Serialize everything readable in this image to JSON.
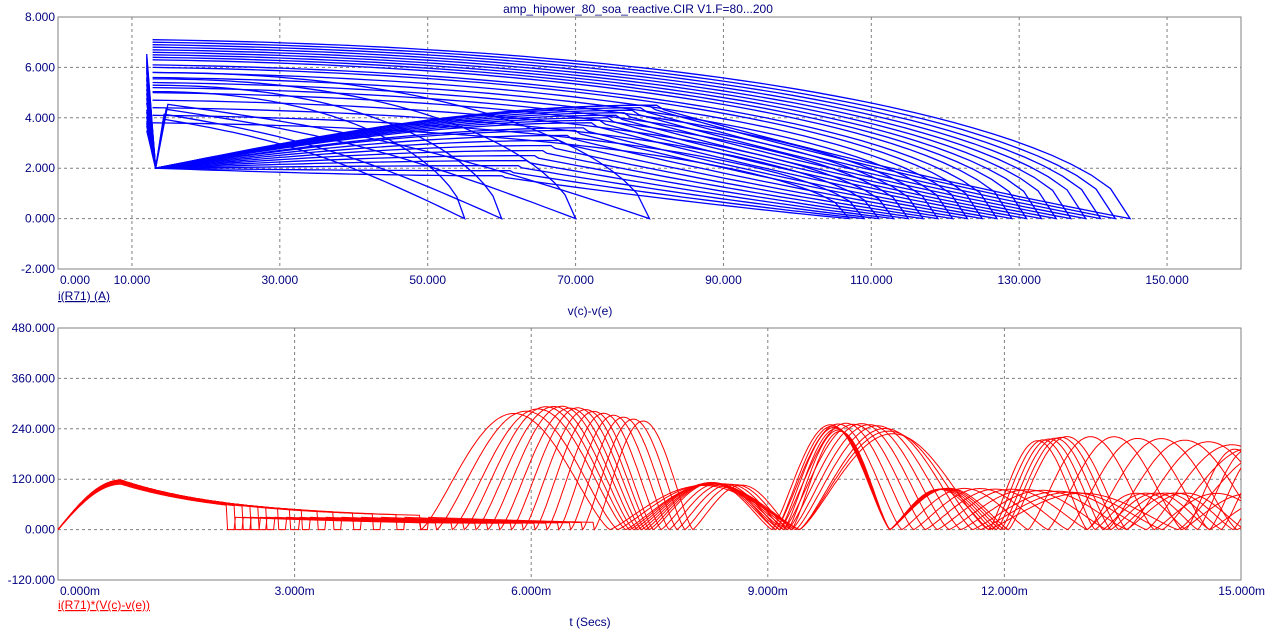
{
  "window": {
    "title": "amp_hipower_80_soa_reactive.CIR V1.F=80...200"
  },
  "colors": {
    "top_series": "#0000ff",
    "bottom_series": "#ff0000",
    "axis_text": "#000080",
    "grid": "#808080",
    "frame": "#808080"
  },
  "chart_data": [
    {
      "type": "line",
      "title": "amp_hipower_80_soa_reactive.CIR V1.F=80...200",
      "xlabel": "v(c)-v(e)",
      "ylabel": "i(R71) (A)",
      "xlim": [
        0,
        160
      ],
      "ylim": [
        -2,
        8
      ],
      "x_ticks": [
        "0.000",
        "10.000",
        "30.000",
        "50.000",
        "70.000",
        "90.000",
        "110.000",
        "130.000",
        "150.000"
      ],
      "y_ticks": [
        "8.000",
        "6.000",
        "4.000",
        "2.000",
        "0.000",
        "-2.000"
      ],
      "grid": true,
      "series_count": 24,
      "series": [
        {
          "shape": "loop",
          "vmin": 12,
          "vmax": 145,
          "ipeak": 7.1,
          "ilow": 2.0,
          "ireturn": 4.5
        },
        {
          "shape": "loop",
          "vmin": 12,
          "vmax": 143,
          "ipeak": 7.0,
          "ilow": 2.0,
          "ireturn": 4.5
        },
        {
          "shape": "loop",
          "vmin": 12,
          "vmax": 141,
          "ipeak": 6.9,
          "ilow": 2.0,
          "ireturn": 4.4
        },
        {
          "shape": "loop",
          "vmin": 12,
          "vmax": 139,
          "ipeak": 6.8,
          "ilow": 2.0,
          "ireturn": 4.3
        },
        {
          "shape": "loop",
          "vmin": 12,
          "vmax": 137,
          "ipeak": 6.7,
          "ilow": 2.0,
          "ireturn": 4.2
        },
        {
          "shape": "loop",
          "vmin": 12,
          "vmax": 135,
          "ipeak": 6.6,
          "ilow": 2.0,
          "ireturn": 4.1
        },
        {
          "shape": "loop",
          "vmin": 12,
          "vmax": 133,
          "ipeak": 6.5,
          "ilow": 2.0,
          "ireturn": 4.0
        },
        {
          "shape": "loop",
          "vmin": 12,
          "vmax": 131,
          "ipeak": 6.4,
          "ilow": 2.0,
          "ireturn": 3.9
        },
        {
          "shape": "loop",
          "vmin": 12,
          "vmax": 129,
          "ipeak": 6.3,
          "ilow": 2.0,
          "ireturn": 3.8
        },
        {
          "shape": "loop",
          "vmin": 12,
          "vmax": 127,
          "ipeak": 6.1,
          "ilow": 2.0,
          "ireturn": 3.6
        },
        {
          "shape": "loop",
          "vmin": 12,
          "vmax": 125,
          "ipeak": 6.0,
          "ilow": 2.0,
          "ireturn": 3.5
        },
        {
          "shape": "loop",
          "vmin": 12,
          "vmax": 123,
          "ipeak": 5.8,
          "ilow": 2.0,
          "ireturn": 3.3
        },
        {
          "shape": "loop",
          "vmin": 12,
          "vmax": 121,
          "ipeak": 5.6,
          "ilow": 2.0,
          "ireturn": 3.1
        },
        {
          "shape": "loop",
          "vmin": 12,
          "vmax": 119,
          "ipeak": 5.4,
          "ilow": 2.0,
          "ireturn": 2.9
        },
        {
          "shape": "loop",
          "vmin": 12,
          "vmax": 117,
          "ipeak": 5.2,
          "ilow": 2.0,
          "ireturn": 2.7
        },
        {
          "shape": "loop",
          "vmin": 12,
          "vmax": 115,
          "ipeak": 5.0,
          "ilow": 2.0,
          "ireturn": 2.5
        },
        {
          "shape": "loop",
          "vmin": 12,
          "vmax": 113,
          "ipeak": 4.7,
          "ilow": 2.0,
          "ireturn": 2.3
        },
        {
          "shape": "loop",
          "vmin": 12,
          "vmax": 111,
          "ipeak": 4.4,
          "ilow": 2.0,
          "ireturn": 2.1
        },
        {
          "shape": "loop",
          "vmin": 12,
          "vmax": 109,
          "ipeak": 4.1,
          "ilow": 2.0,
          "ireturn": 1.9
        },
        {
          "shape": "loop",
          "vmin": 12,
          "vmax": 107,
          "ipeak": 3.8,
          "ilow": 2.0,
          "ireturn": 1.7
        },
        {
          "shape": "tail",
          "vmin": 12,
          "vmax": 80,
          "ipeak": 4.6,
          "ilow": 2.0,
          "ireturn": 0.0
        },
        {
          "shape": "tail",
          "vmin": 12,
          "vmax": 70,
          "ipeak": 4.4,
          "ilow": 2.0,
          "ireturn": 0.0
        },
        {
          "shape": "tail",
          "vmin": 12,
          "vmax": 60,
          "ipeak": 4.2,
          "ilow": 2.0,
          "ireturn": 0.0
        },
        {
          "shape": "tail",
          "vmin": 12,
          "vmax": 55,
          "ipeak": 4.0,
          "ilow": 2.0,
          "ireturn": 0.0
        }
      ]
    },
    {
      "type": "line",
      "title": "",
      "xlabel": "t (Secs)",
      "ylabel": "i(R71)*(V(c)-v(e))",
      "xlim": [
        0,
        15
      ],
      "x_unit": "ms",
      "ylim": [
        -120,
        480
      ],
      "x_ticks": [
        "0.000m",
        "3.000m",
        "6.000m",
        "9.000m",
        "12.000m",
        "15.000m"
      ],
      "y_ticks": [
        "480.000",
        "360.000",
        "240.000",
        "120.000",
        "0.000",
        "-120.000"
      ],
      "grid": true,
      "series": [
        {
          "startup_peak": 108,
          "startup_end": 2.15,
          "lobe_start": 4.6,
          "lobe_period": 2.4,
          "lobe_peak": 290
        },
        {
          "startup_peak": 110,
          "startup_end": 2.25,
          "lobe_start": 4.8,
          "lobe_period": 2.3,
          "lobe_peak": 295
        },
        {
          "startup_peak": 112,
          "startup_end": 2.35,
          "lobe_start": 5.0,
          "lobe_period": 2.2,
          "lobe_peak": 300
        },
        {
          "startup_peak": 114,
          "startup_end": 2.45,
          "lobe_start": 5.15,
          "lobe_period": 2.1,
          "lobe_peak": 305
        },
        {
          "startup_peak": 115,
          "startup_end": 2.55,
          "lobe_start": 5.3,
          "lobe_period": 2.0,
          "lobe_peak": 305
        },
        {
          "startup_peak": 116,
          "startup_end": 2.65,
          "lobe_start": 5.45,
          "lobe_period": 1.9,
          "lobe_peak": 305
        },
        {
          "startup_peak": 117,
          "startup_end": 2.8,
          "lobe_start": 5.6,
          "lobe_period": 1.8,
          "lobe_peak": 300
        },
        {
          "startup_peak": 118,
          "startup_end": 2.95,
          "lobe_start": 5.75,
          "lobe_period": 1.7,
          "lobe_peak": 300
        },
        {
          "startup_peak": 118,
          "startup_end": 3.1,
          "lobe_start": 5.9,
          "lobe_period": 1.6,
          "lobe_peak": 295
        },
        {
          "startup_peak": 118,
          "startup_end": 3.3,
          "lobe_start": 6.05,
          "lobe_period": 1.5,
          "lobe_peak": 290
        },
        {
          "startup_peak": 118,
          "startup_end": 3.5,
          "lobe_start": 6.2,
          "lobe_period": 1.45,
          "lobe_peak": 285
        },
        {
          "startup_peak": 117,
          "startup_end": 3.75,
          "lobe_start": 6.35,
          "lobe_period": 1.4,
          "lobe_peak": 280
        },
        {
          "startup_peak": 116,
          "startup_end": 4.0,
          "lobe_start": 6.5,
          "lobe_period": 1.35,
          "lobe_peak": 275
        },
        {
          "startup_peak": 115,
          "startup_end": 4.3,
          "lobe_start": 6.65,
          "lobe_period": 1.3,
          "lobe_peak": 270
        },
        {
          "startup_peak": 114,
          "startup_end": 4.6,
          "lobe_start": 6.8,
          "lobe_period": 1.25,
          "lobe_peak": 265
        }
      ]
    }
  ]
}
